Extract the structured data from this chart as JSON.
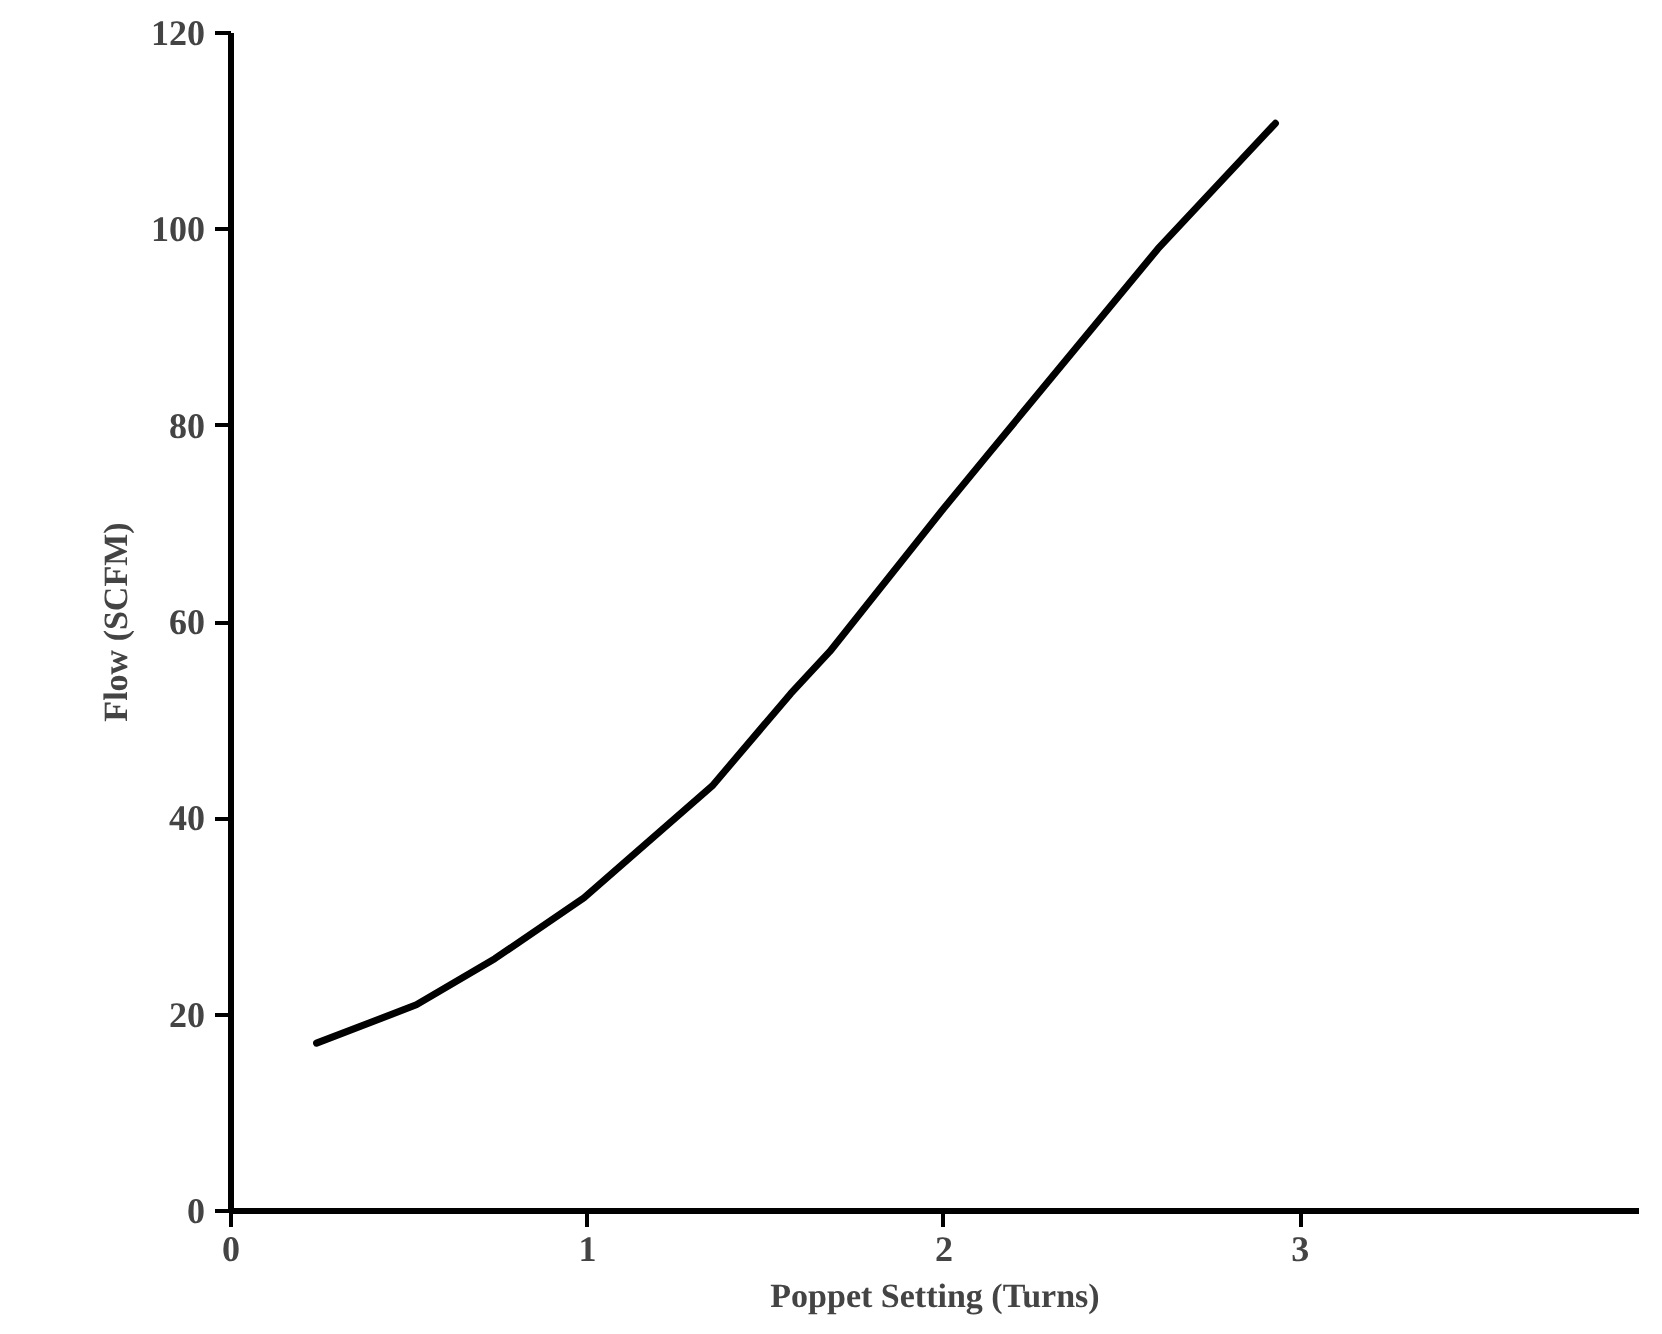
{
  "chart_data": {
    "type": "line",
    "xlabel": "Poppet Setting (Turns)",
    "ylabel": "Flow (SCFM)",
    "x": [
      0.24,
      0.52,
      0.74,
      0.99,
      1.35,
      1.57,
      1.68,
      2.0,
      2.12,
      2.6,
      2.93
    ],
    "series": [
      {
        "color": "#000000",
        "values": [
          17.1,
          21,
          25.7,
          31.9,
          43.3,
          52.7,
          57,
          71.6,
          76.9,
          98,
          110.8
        ]
      }
    ],
    "xlim": [
      0,
      3.95
    ],
    "ylim": [
      0,
      120
    ],
    "xticks": [
      0,
      1,
      2,
      3
    ],
    "yticks": [
      0,
      20,
      40,
      60,
      80,
      100,
      120
    ],
    "line_style": "solid"
  }
}
